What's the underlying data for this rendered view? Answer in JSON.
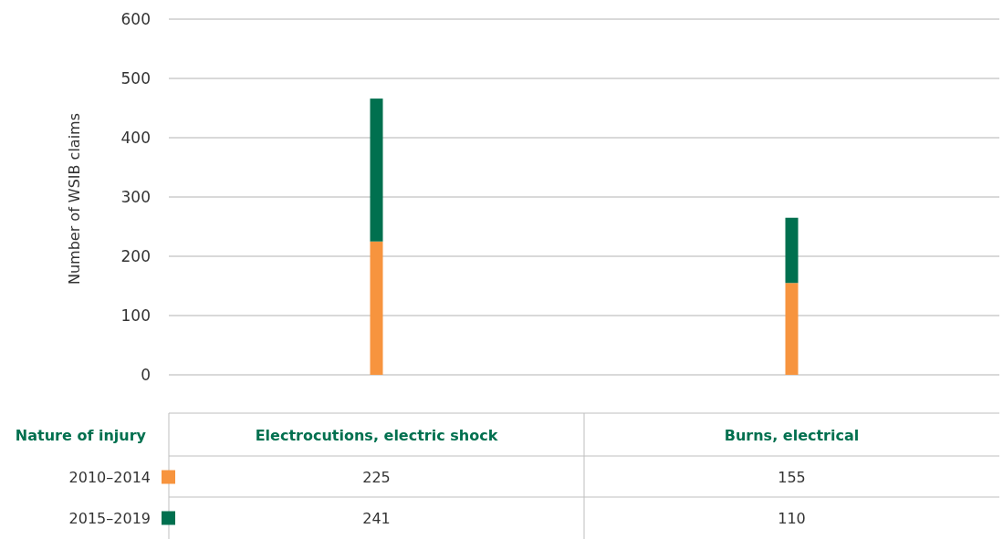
{
  "chart_data": {
    "type": "bar",
    "stacked": true,
    "ylabel": "Number of WSIB claims",
    "xlabel": "Nature of injury",
    "categories": [
      "Electrocutions, electric shock",
      "Burns, electrical"
    ],
    "series": [
      {
        "name": "2010–2014",
        "color": "#f7943e",
        "values": [
          225,
          155
        ]
      },
      {
        "name": "2015–2019",
        "color": "#00704f",
        "values": [
          241,
          110
        ]
      }
    ],
    "ylim": [
      0,
      600
    ],
    "yticks": [
      0,
      100,
      200,
      300,
      400,
      500,
      600
    ],
    "grid": "y",
    "legend": "bottom left",
    "data_labels": true
  }
}
